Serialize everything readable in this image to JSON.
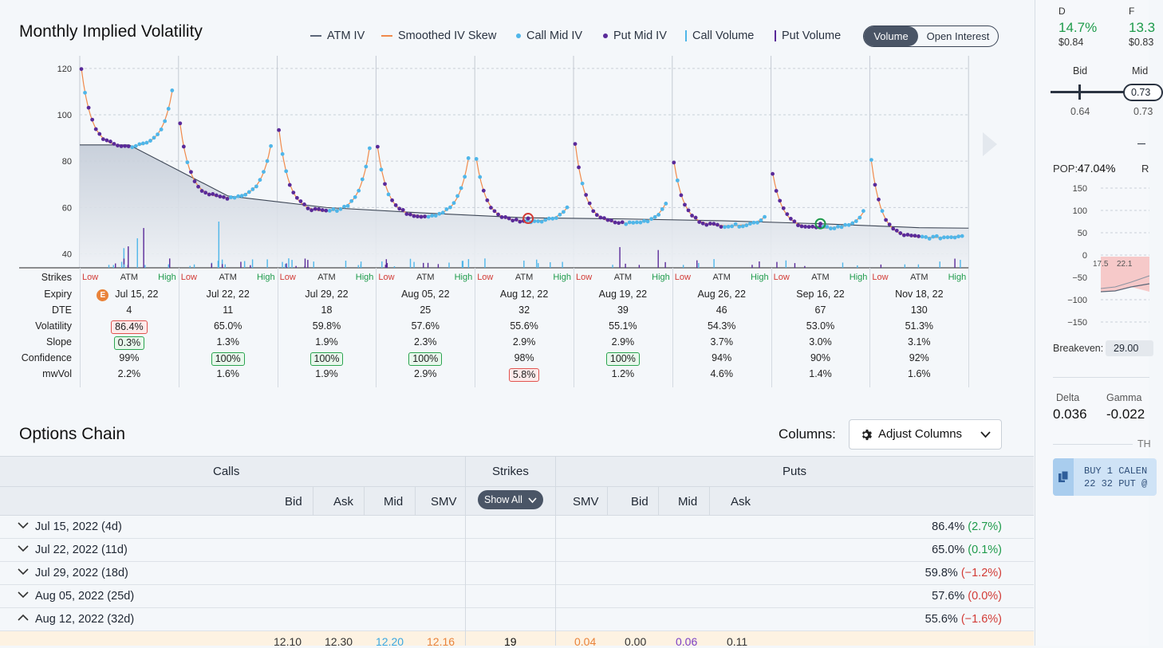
{
  "chart_title": "Monthly Implied Volatility",
  "legend": {
    "atm_iv": "ATM IV",
    "smoothed": "Smoothed IV Skew",
    "call_mid": "Call Mid IV",
    "put_mid": "Put Mid IV",
    "call_volume": "Call Volume",
    "put_volume": "Put Volume"
  },
  "toggle": {
    "volume": "Volume",
    "open_interest": "Open Interest"
  },
  "colors": {
    "call": "#4fb6e9",
    "put": "#5a2a99",
    "smoothed": "#f08a4b",
    "atm": "#5b6678",
    "red": "#d23b36",
    "green": "#1e9b4b"
  },
  "chart_data": {
    "type": "scatter",
    "ylim": [
      34,
      122
    ],
    "y_ticks": [
      120,
      100,
      80,
      60,
      40
    ],
    "atm_line": [
      87,
      87,
      65,
      60,
      57.6,
      55.6,
      55.1,
      54.3,
      53,
      51.3
    ],
    "expiries": [
      {
        "label": "Jul 15, 22",
        "left": 120,
        "atm": 87,
        "right": 110,
        "dip": 86
      },
      {
        "label": "Jul 22, 22",
        "left": 96,
        "atm": 65,
        "right": 87,
        "dip": 64
      },
      {
        "label": "Jul 29, 22",
        "left": 94,
        "atm": 60,
        "right": 86,
        "dip": 58
      },
      {
        "label": "Aug 05, 22",
        "left": 86,
        "atm": 57,
        "right": 81,
        "dip": 56
      },
      {
        "label": "Aug 12, 22",
        "left": 81,
        "atm": 55.6,
        "right": 60,
        "dip": 54
      },
      {
        "label": "Aug 19, 22",
        "left": 88,
        "atm": 55,
        "right": 62,
        "dip": 53
      },
      {
        "label": "Aug 26, 22",
        "left": 80,
        "atm": 54,
        "right": 56,
        "dip": 52
      },
      {
        "label": "Sep 16, 22",
        "left": 75,
        "atm": 53,
        "right": 58,
        "dip": 51
      },
      {
        "label": "Nov 18, 22",
        "left": 80,
        "atm": 51,
        "right": 48,
        "dip": 47
      }
    ]
  },
  "strike_labels": {
    "low": "Low",
    "atm": "ATM",
    "high": "High"
  },
  "row_labels": [
    "Strikes",
    "Expiry",
    "DTE",
    "Volatility",
    "Slope",
    "Confidence",
    "mwVol"
  ],
  "columns": [
    {
      "expiry": "Jul 15, 22",
      "dte": "4",
      "vol": "86.4%",
      "vol_hl": "red",
      "slope": "0.3%",
      "slope_hl": "green",
      "conf": "99%",
      "conf_hl": "",
      "mw": "2.2%",
      "mw_hl": "",
      "earn": "E"
    },
    {
      "expiry": "Jul 22, 22",
      "dte": "11",
      "vol": "65.0%",
      "vol_hl": "",
      "slope": "1.3%",
      "slope_hl": "",
      "conf": "100%",
      "conf_hl": "green",
      "mw": "1.6%",
      "mw_hl": ""
    },
    {
      "expiry": "Jul 29, 22",
      "dte": "18",
      "vol": "59.8%",
      "vol_hl": "",
      "slope": "1.9%",
      "slope_hl": "",
      "conf": "100%",
      "conf_hl": "green",
      "mw": "1.9%",
      "mw_hl": ""
    },
    {
      "expiry": "Aug 05, 22",
      "dte": "25",
      "vol": "57.6%",
      "vol_hl": "",
      "slope": "2.3%",
      "slope_hl": "",
      "conf": "100%",
      "conf_hl": "green",
      "mw": "2.9%",
      "mw_hl": ""
    },
    {
      "expiry": "Aug 12, 22",
      "dte": "32",
      "vol": "55.6%",
      "vol_hl": "",
      "slope": "2.9%",
      "slope_hl": "",
      "conf": "98%",
      "conf_hl": "",
      "mw": "5.8%",
      "mw_hl": "red"
    },
    {
      "expiry": "Aug 19, 22",
      "dte": "39",
      "vol": "55.1%",
      "vol_hl": "",
      "slope": "2.9%",
      "slope_hl": "",
      "conf": "100%",
      "conf_hl": "green",
      "mw": "1.2%",
      "mw_hl": ""
    },
    {
      "expiry": "Aug 26, 22",
      "dte": "46",
      "vol": "54.3%",
      "vol_hl": "",
      "slope": "3.7%",
      "slope_hl": "",
      "conf": "94%",
      "conf_hl": "",
      "mw": "4.6%",
      "mw_hl": ""
    },
    {
      "expiry": "Sep 16, 22",
      "dte": "67",
      "vol": "53.0%",
      "vol_hl": "",
      "slope": "3.0%",
      "slope_hl": "",
      "conf": "90%",
      "conf_hl": "",
      "mw": "1.4%",
      "mw_hl": ""
    },
    {
      "expiry": "Nov 18, 22",
      "dte": "130",
      "vol": "51.3%",
      "vol_hl": "",
      "slope": "3.1%",
      "slope_hl": "",
      "conf": "92%",
      "conf_hl": "",
      "mw": "1.6%",
      "mw_hl": ""
    }
  ],
  "chain": {
    "title": "Options Chain",
    "columns_label": "Columns:",
    "adjust_label": "Adjust Columns",
    "calls": "Calls",
    "strikes": "Strikes",
    "puts": "Puts",
    "show_all": "Show All",
    "call_cols": [
      "Bid",
      "Ask",
      "Mid",
      "SMV"
    ],
    "put_cols": [
      "SMV",
      "Bid",
      "Mid",
      "Ask"
    ],
    "rows": [
      {
        "label": "Jul 15, 2022 (4d)",
        "iv": "86.4%",
        "chg": "(2.7%)",
        "dir": "pos",
        "open": false
      },
      {
        "label": "Jul 22, 2022 (11d)",
        "iv": "65.0%",
        "chg": "(0.1%)",
        "dir": "pos",
        "open": false
      },
      {
        "label": "Jul 29, 2022 (18d)",
        "iv": "59.8%",
        "chg": "(−1.2%)",
        "dir": "neg",
        "open": false
      },
      {
        "label": "Aug 05, 2022 (25d)",
        "iv": "57.6%",
        "chg": "(0.0%)",
        "dir": "neg",
        "open": false
      },
      {
        "label": "Aug 12, 2022 (32d)",
        "iv": "55.6%",
        "chg": "(−1.6%)",
        "dir": "neg",
        "open": true
      }
    ],
    "data_row": {
      "c_bid": "12.10",
      "c_ask": "12.30",
      "c_mid": "12.20",
      "c_smv": "12.16",
      "strike": "19",
      "p_smv": "0.04",
      "p_bid": "0.00",
      "p_mid": "0.06",
      "p_ask": "0.11"
    }
  },
  "side": {
    "d_label": "D",
    "d_val": "14.7%",
    "d_price": "$0.84",
    "f_label": "F",
    "f_val": "13.3",
    "f_price": "$0.83",
    "bid": "Bid",
    "mid": "Mid",
    "bid_val": "0.64",
    "mid_val": "0.73",
    "mid_box": "0.73",
    "pop_label": "POP:",
    "pop_val": "47.04%",
    "r_label": "R",
    "pl_ticks": [
      "150",
      "100",
      "50",
      "0",
      "−50",
      "−100",
      "−150"
    ],
    "strike_a": "17.5",
    "strike_b": "22.1",
    "breakeven_label": "Breakeven:",
    "breakeven_val": "29.00",
    "delta_label": "Delta",
    "delta_val": "0.036",
    "gamma_label": "Gamma",
    "gamma_val": "-0.022",
    "th_label": "TH",
    "order_text_1": "BUY 1 CALEN",
    "order_text_2": "22 32 PUT @"
  }
}
